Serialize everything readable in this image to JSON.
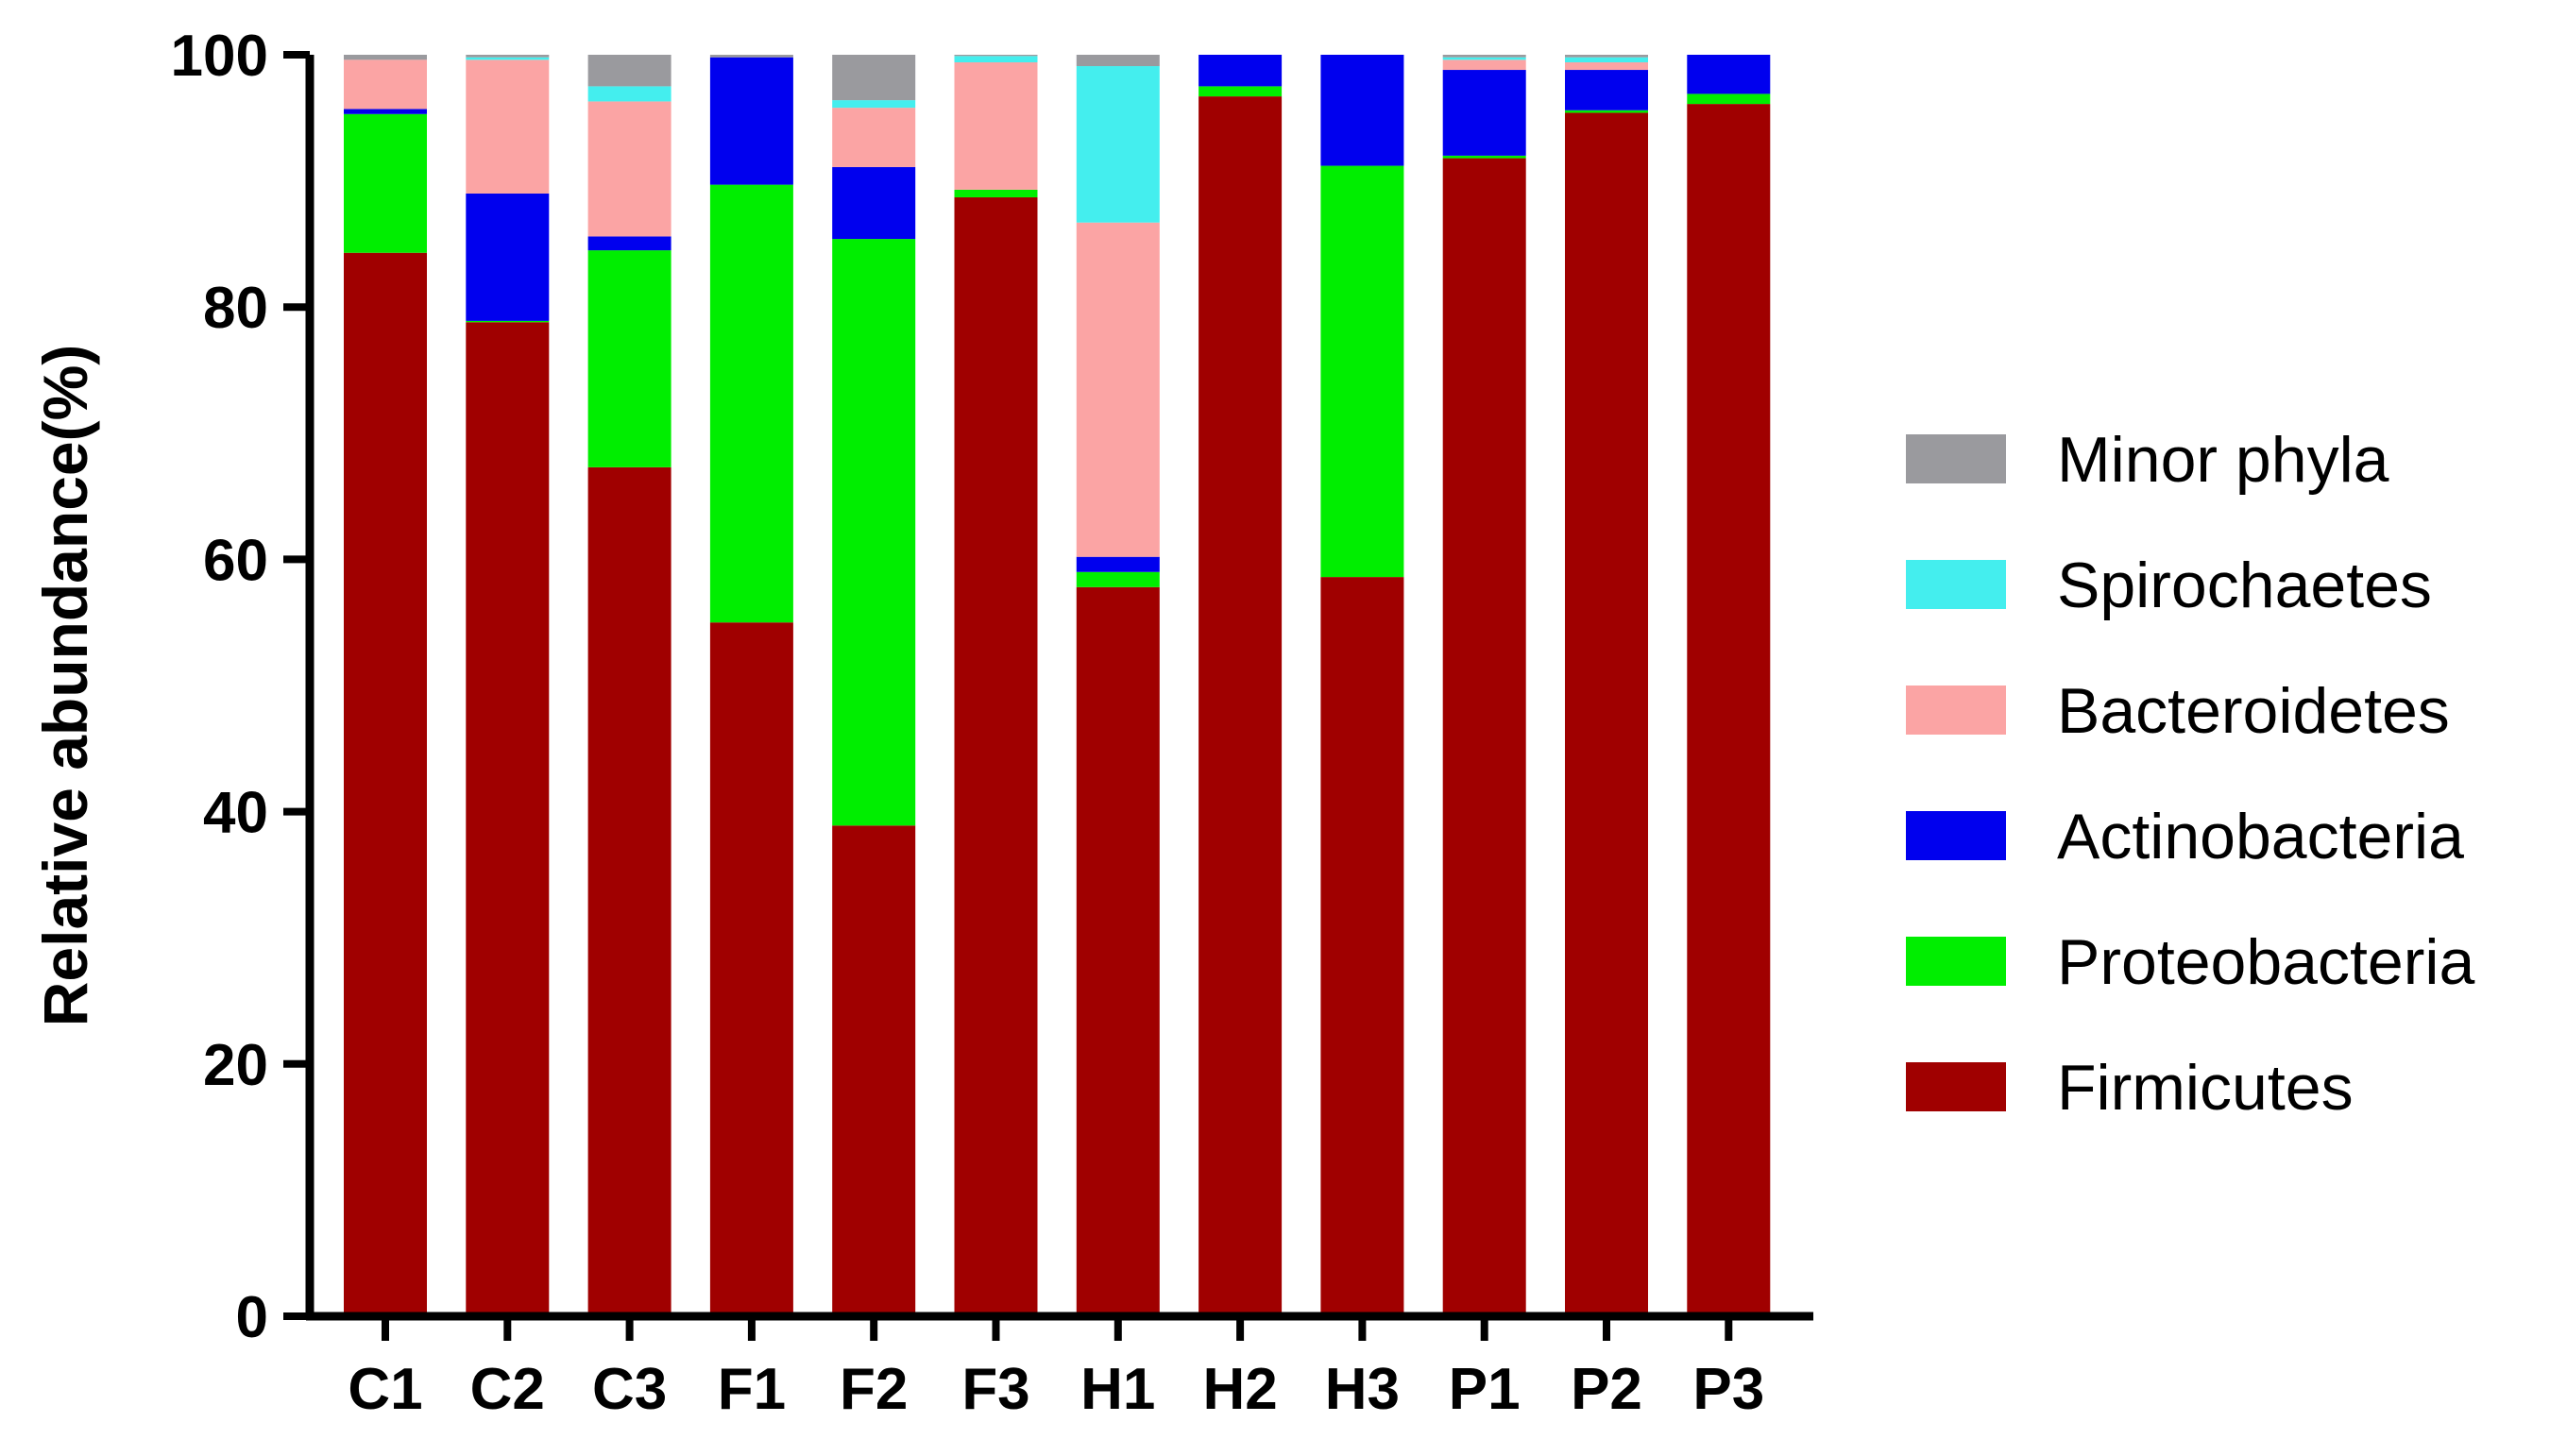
{
  "chart_data": {
    "type": "bar",
    "stacked": true,
    "title": "",
    "xlabel": "",
    "ylabel": "Relative abundance(%)",
    "ylim": [
      0,
      100
    ],
    "yticks": [
      "0",
      "20",
      "40",
      "60",
      "80",
      "100"
    ],
    "grid": false,
    "legend_position": "right",
    "categories": [
      "C1",
      "C2",
      "C3",
      "F1",
      "F2",
      "F3",
      "H1",
      "H2",
      "H3",
      "P1",
      "P2",
      "P3"
    ],
    "series": [
      {
        "name": "Firmicutes",
        "color": "#a00000",
        "values": [
          84.3,
          78.8,
          67.3,
          55.0,
          38.9,
          88.7,
          57.8,
          96.7,
          58.6,
          91.8,
          95.4,
          96.1
        ]
      },
      {
        "name": "Proteobacteria",
        "color": "#00ee00",
        "values": [
          11.0,
          0.1,
          17.2,
          34.7,
          46.5,
          0.6,
          1.2,
          0.8,
          32.6,
          0.2,
          0.2,
          0.8
        ]
      },
      {
        "name": "Actinobacteria",
        "color": "#0000ee",
        "values": [
          0.4,
          10.1,
          1.1,
          10.1,
          5.7,
          0.0,
          1.2,
          2.5,
          8.8,
          6.8,
          3.2,
          3.1
        ]
      },
      {
        "name": "Bacteroidetes",
        "color": "#fba4a4",
        "values": [
          3.9,
          10.6,
          10.7,
          0.0,
          4.7,
          10.1,
          26.5,
          0.0,
          0.0,
          0.8,
          0.6,
          0.0
        ]
      },
      {
        "name": "Spirochaetes",
        "color": "#44eeee",
        "values": [
          0.0,
          0.2,
          1.2,
          0.0,
          0.6,
          0.5,
          12.4,
          0.0,
          0.0,
          0.2,
          0.4,
          0.0
        ]
      },
      {
        "name": "Minor phyla",
        "color": "#9a9a9e",
        "values": [
          0.4,
          0.2,
          2.5,
          0.2,
          3.6,
          0.1,
          0.9,
          0.0,
          0.0,
          0.2,
          0.2,
          0.0
        ]
      }
    ]
  }
}
